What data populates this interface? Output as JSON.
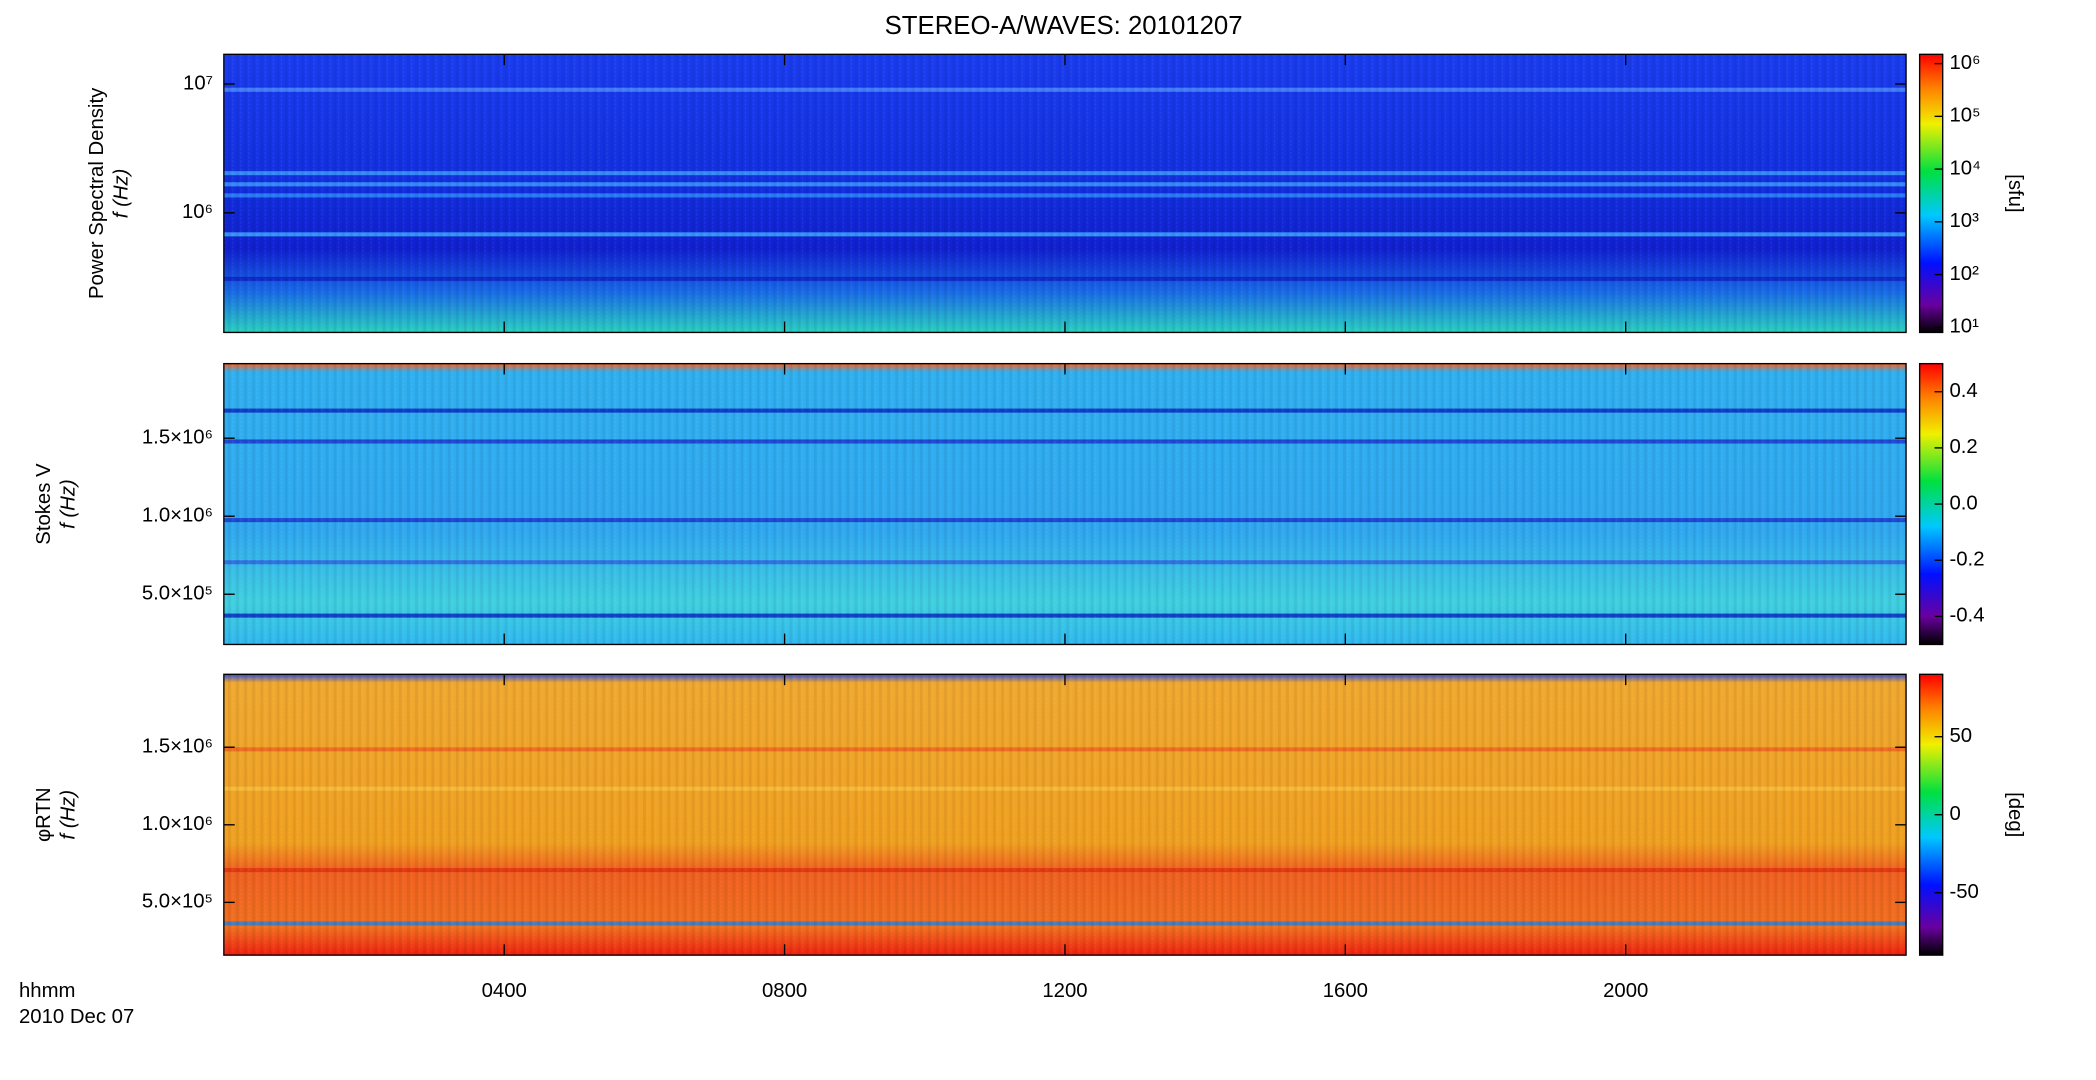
{
  "figure": {
    "title": "STEREO-A/WAVES: 20101207",
    "xlabel": "hhmm",
    "date": "2010 Dec 07",
    "xlim": [
      0,
      24
    ],
    "xticks": [
      {
        "value": 4,
        "label": "0400"
      },
      {
        "value": 8,
        "label": "0800"
      },
      {
        "value": 12,
        "label": "1200"
      },
      {
        "value": 16,
        "label": "1600"
      },
      {
        "value": 20,
        "label": "2000"
      }
    ]
  },
  "chart_data": [
    {
      "type": "spectrogram",
      "ylabel": "Power Spectral Density",
      "yunit": "f (Hz)",
      "log": true,
      "ylim": [
        118000,
        17000000
      ],
      "yticks": [
        {
          "value": 1000000,
          "label": "10⁶"
        },
        {
          "value": 10000000,
          "label": "10⁷"
        }
      ],
      "colorbar": {
        "label": "[sfu]",
        "log": true,
        "clim": [
          8,
          1500000
        ],
        "ticks": [
          {
            "value": 10,
            "label": "10¹"
          },
          {
            "value": 100,
            "label": "10²"
          },
          {
            "value": 1000,
            "label": "10³"
          },
          {
            "value": 10000,
            "label": "10⁴"
          },
          {
            "value": 100000,
            "label": "10⁵"
          },
          {
            "value": 1000000,
            "label": "10⁶"
          }
        ]
      }
    },
    {
      "type": "spectrogram",
      "ylabel": "Stokes V",
      "yunit": "f (Hz)",
      "log": false,
      "ylim": [
        178000,
        1978000
      ],
      "yticks": [
        {
          "value": 500000,
          "label": "5.0×10⁵"
        },
        {
          "value": 1000000,
          "label": "1.0×10⁶"
        },
        {
          "value": 1500000,
          "label": "1.5×10⁶"
        }
      ],
      "colorbar": {
        "label": "",
        "log": false,
        "clim": [
          -0.5,
          0.5
        ],
        "ticks": [
          -0.4,
          -0.2,
          {
            "value": 0,
            "label": "0.0"
          },
          0.2,
          0.4
        ]
      }
    },
    {
      "type": "spectrogram",
      "ylabel": "φRTN",
      "yunit": "f (Hz)",
      "log": false,
      "ylim": [
        160000,
        1970000
      ],
      "yticks": [
        {
          "value": 500000,
          "label": "5.0×10⁵"
        },
        {
          "value": 1000000,
          "label": "1.0×10⁶"
        },
        {
          "value": 1500000,
          "label": "1.5×10⁶"
        }
      ],
      "colorbar": {
        "label": "[deg]",
        "log": false,
        "clim": [
          -90,
          90
        ],
        "ticks": [
          -50,
          0,
          50
        ]
      }
    }
  ]
}
